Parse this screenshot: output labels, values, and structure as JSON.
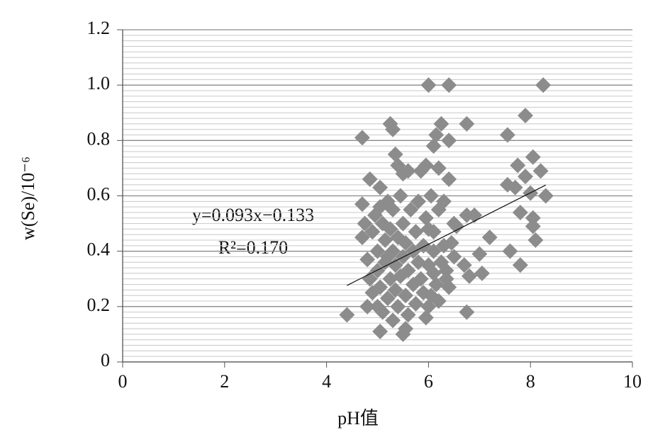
{
  "chart_data": {
    "type": "scatter",
    "xlabel": "pH值",
    "ylabel": "w(Se)/10⁻⁶",
    "annotations": [
      "y=0.093x−0.133",
      "R²=0.170"
    ],
    "color": "#8c8c8c",
    "x": [
      4.4,
      4.7,
      4.7,
      4.7,
      4.85,
      5.05,
      5.05,
      5.25,
      5.3,
      5.35,
      5.4,
      5.5,
      5.5,
      5.55,
      5.6,
      5.85,
      5.95,
      6,
      6.4,
      6.1,
      6.15,
      6.25,
      6.2,
      6.4,
      6.4,
      6.3,
      6.5,
      6.55,
      6.75,
      6.75,
      6.9,
      6.7,
      6.8,
      6.75,
      7,
      7.05,
      7.2,
      7.55,
      7.55,
      7.6,
      7.7,
      7.75,
      7.8,
      7.8,
      7.9,
      7.9,
      8,
      8.05,
      8.05,
      8.05,
      8.1,
      8.2,
      8.25,
      8.3,
      5.95,
      6.05,
      6.2,
      6.4,
      6.35,
      6.45,
      6.5,
      6.1,
      6,
      6.2,
      4.8,
      4.85,
      4.9,
      4.9,
      4.95,
      5,
      5,
      5,
      5.05,
      5.1,
      5.1,
      5.15,
      5.15,
      5.2,
      5.2,
      5.25,
      5.25,
      5.3,
      5.3,
      5.3,
      5.35,
      5.35,
      5.4,
      5.4,
      5.45,
      5.45,
      5.5,
      5.5,
      5.55,
      5.55,
      5.6,
      5.6,
      5.65,
      5.7,
      5.7,
      5.75,
      5.75,
      5.8,
      5.8,
      5.85,
      5.9,
      5.9,
      5.95,
      6,
      6,
      6.05,
      6.1,
      6.1,
      6.15,
      6.25,
      6.3,
      6.35,
      4.75,
      4.8,
      5.05,
      5.2
    ],
    "values": [
      0.17,
      0.81,
      0.57,
      0.45,
      0.66,
      0.63,
      0.11,
      0.86,
      0.84,
      0.75,
      0.71,
      0.68,
      0.1,
      0.12,
      0.69,
      0.69,
      0.71,
      1,
      1,
      0.78,
      0.82,
      0.86,
      0.7,
      0.8,
      0.66,
      0.58,
      0.5,
      0.49,
      0.86,
      0.53,
      0.53,
      0.35,
      0.31,
      0.18,
      0.39,
      0.32,
      0.45,
      0.64,
      0.82,
      0.4,
      0.63,
      0.71,
      0.35,
      0.54,
      0.89,
      0.67,
      0.61,
      0.52,
      0.74,
      0.49,
      0.44,
      0.69,
      1,
      0.6,
      0.16,
      0.24,
      0.22,
      0.27,
      0.3,
      0.43,
      0.38,
      0.47,
      0.48,
      0.55,
      0.37,
      0.3,
      0.25,
      0.47,
      0.53,
      0.2,
      0.4,
      0.33,
      0.27,
      0.5,
      0.18,
      0.36,
      0.44,
      0.23,
      0.58,
      0.3,
      0.48,
      0.15,
      0.4,
      0.55,
      0.26,
      0.35,
      0.45,
      0.2,
      0.6,
      0.31,
      0.38,
      0.5,
      0.24,
      0.43,
      0.17,
      0.33,
      0.55,
      0.28,
      0.4,
      0.47,
      0.21,
      0.36,
      0.58,
      0.3,
      0.42,
      0.25,
      0.52,
      0.35,
      0.2,
      0.6,
      0.32,
      0.4,
      0.28,
      0.36,
      0.42,
      0.33,
      0.5,
      0.2,
      0.56,
      0.38
    ],
    "trendline": {
      "slope": 0.093,
      "intercept": -0.133,
      "x_range": [
        4.4,
        8.3
      ]
    },
    "xlim": [
      0,
      10
    ],
    "xticks": [
      0,
      2,
      4,
      6,
      8,
      10
    ],
    "ylim": [
      0,
      1.2
    ],
    "yticks": [
      0,
      0.2,
      0.4,
      0.6,
      {
        "value": 0.8,
        "label": "0.8"
      },
      {
        "value": 1,
        "label": "1.0"
      },
      1.2
    ],
    "yminorticks": [
      0.02,
      0.04,
      0.06,
      0.08,
      0.1,
      0.12,
      0.14,
      0.16,
      0.18,
      0.22,
      0.24,
      0.26,
      0.28,
      0.3,
      0.32,
      0.34,
      0.36,
      0.38,
      0.42,
      0.44,
      0.46,
      0.48,
      0.5,
      0.52,
      0.54,
      0.56,
      0.58,
      0.62,
      0.64,
      0.66,
      0.68,
      0.7,
      0.72,
      0.74,
      0.76,
      0.78,
      0.82,
      0.84,
      0.86,
      0.88,
      0.9,
      0.92,
      0.94,
      0.96,
      0.98,
      1.02,
      1.04,
      1.06,
      1.08,
      1.1,
      1.12,
      1.14,
      1.16,
      1.18
    ],
    "grid": true
  }
}
